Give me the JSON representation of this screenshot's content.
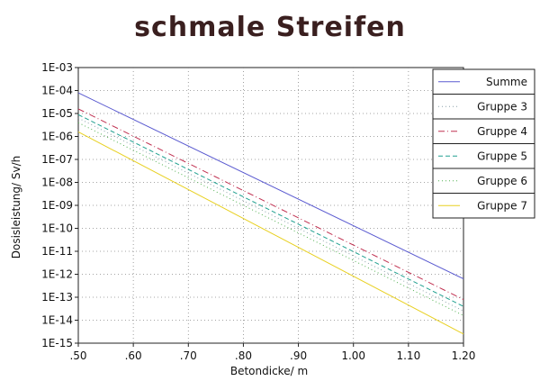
{
  "chart_data": {
    "type": "line",
    "title": "schmale Streifen",
    "xlabel": "Betondicke/ m",
    "ylabel": "Dosisleistung/ Sv/h",
    "x_ticks": [
      ".50",
      ".60",
      ".70",
      ".80",
      ".90",
      "1.00",
      "1.10",
      "1.20"
    ],
    "y_ticks": [
      "1E-03",
      "1E-04",
      "1E-05",
      "1E-06",
      "1E-07",
      "1E-08",
      "1E-09",
      "1E-10",
      "1E-11",
      "1E-12",
      "1E-13",
      "1E-14",
      "1E-15"
    ],
    "xlim": [
      0.5,
      1.2
    ],
    "ylim_exp": [
      -15,
      -3
    ],
    "y_scale": "log",
    "grid": true,
    "legend_position": "top-right",
    "series": [
      {
        "name": "Summe",
        "color": "#5a5ad0",
        "dash": "solid",
        "x": [
          0.5,
          1.2
        ],
        "y_log10": [
          -4.1,
          -12.2
        ]
      },
      {
        "name": "Gruppe 3",
        "color": "#8aa0a8",
        "dash": "dotted",
        "x": [
          0.5,
          1.2
        ],
        "y_log10": [
          -5.2,
          -13.6
        ]
      },
      {
        "name": "Gruppe 4",
        "color": "#c03050",
        "dash": "dashdot",
        "x": [
          0.5,
          1.2
        ],
        "y_log10": [
          -4.8,
          -13.1
        ]
      },
      {
        "name": "Gruppe 5",
        "color": "#20a090",
        "dash": "dashed",
        "x": [
          0.5,
          1.2
        ],
        "y_log10": [
          -5.05,
          -13.4
        ]
      },
      {
        "name": "Gruppe 6",
        "color": "#50b050",
        "dash": "dotted",
        "x": [
          0.5,
          1.2
        ],
        "y_log10": [
          -5.4,
          -13.8
        ]
      },
      {
        "name": "Gruppe 7",
        "color": "#e8d020",
        "dash": "solid",
        "x": [
          0.5,
          1.2
        ],
        "y_log10": [
          -5.8,
          -14.6
        ]
      }
    ]
  }
}
